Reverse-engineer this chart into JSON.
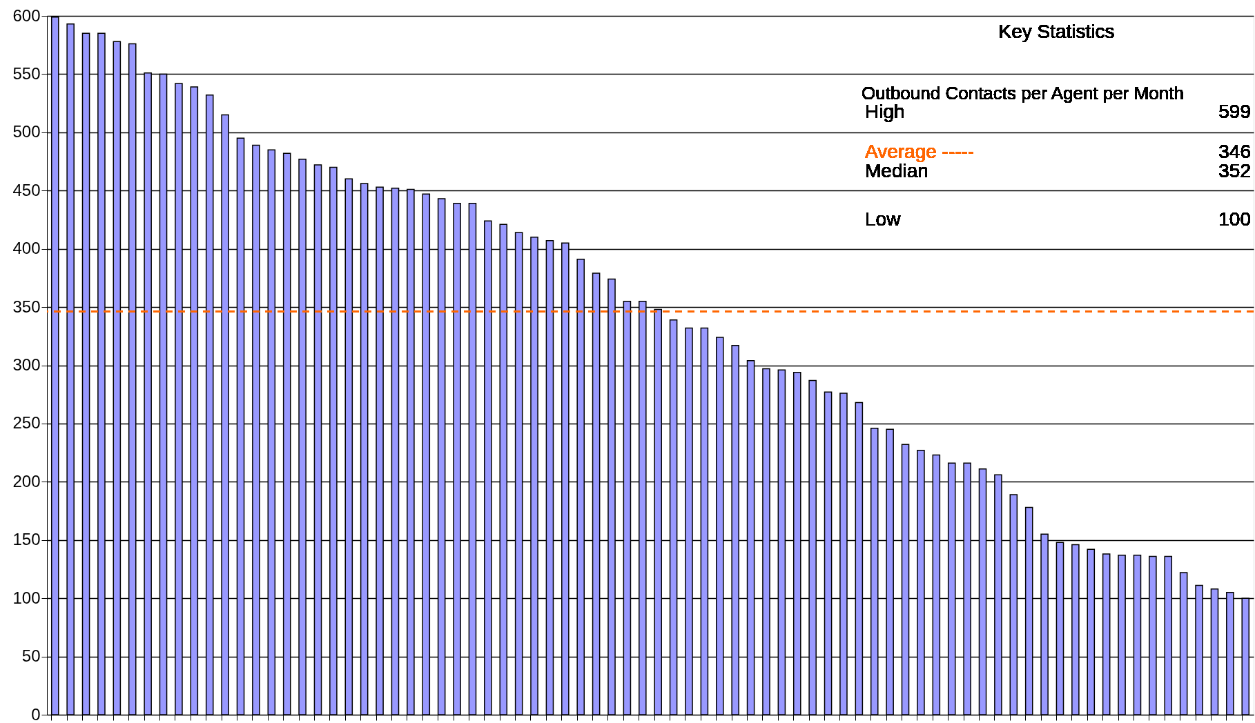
{
  "chart_data": {
    "type": "bar",
    "categories": [
      null,
      null,
      null,
      null,
      null,
      null,
      null,
      null,
      null,
      null,
      null,
      null,
      null,
      null,
      null,
      null,
      null,
      null,
      null,
      null,
      null,
      null,
      null,
      null,
      null,
      null,
      null,
      null,
      null,
      null,
      null,
      null,
      null,
      null,
      null,
      null,
      null,
      null,
      null,
      null,
      null,
      null,
      null,
      null,
      null,
      null,
      null,
      null,
      null,
      null,
      null,
      null,
      null,
      null,
      null,
      null,
      null,
      null,
      null,
      null,
      null,
      null,
      null,
      null,
      null,
      null,
      null,
      null,
      null,
      null,
      null,
      null,
      null,
      null,
      null,
      null,
      null,
      null
    ],
    "values": [
      599,
      593,
      585,
      585,
      578,
      576,
      551,
      550,
      542,
      539,
      532,
      515,
      495,
      489,
      485,
      482,
      477,
      472,
      470,
      460,
      456,
      453,
      452,
      451,
      447,
      443,
      439,
      439,
      424,
      421,
      414,
      410,
      407,
      405,
      391,
      379,
      374,
      355,
      355,
      348,
      339,
      332,
      332,
      324,
      317,
      304,
      297,
      296,
      294,
      287,
      277,
      276,
      268,
      246,
      245,
      232,
      227,
      223,
      216,
      216,
      211,
      206,
      189,
      178,
      155,
      148,
      146,
      142,
      138,
      137,
      137,
      136,
      136,
      122,
      111,
      108,
      105,
      100
    ],
    "color": "#9999ff",
    "ylim": [
      0,
      600
    ],
    "yticks": [
      0,
      50,
      100,
      150,
      200,
      250,
      300,
      350,
      400,
      450,
      500,
      550,
      600
    ],
    "grid": "y",
    "tick_labels": "y",
    "ref_lines": [
      {
        "axis": "y",
        "value": 346,
        "color": "#ff6600",
        "line_style": "dashed"
      }
    ],
    "annotations": [
      "Key Statistics",
      "Outbound Contacts per Agent per Month",
      "High",
      "599",
      "Average -----",
      "346",
      "Median",
      "352",
      "Low",
      "100"
    ]
  }
}
